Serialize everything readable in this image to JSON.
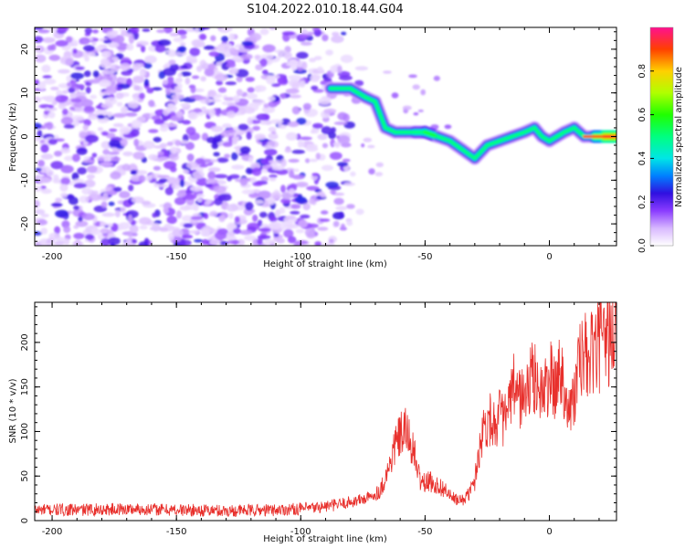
{
  "title": "S104.2022.010.18.44.G04",
  "chart_data": [
    {
      "type": "heatmap",
      "xlabel": "Height of straight line (km)",
      "ylabel": "Frequency (Hz)",
      "xlim": [
        -207,
        27
      ],
      "ylim": [
        -25,
        25
      ],
      "x_ticks": [
        "-200",
        "-150",
        "-100",
        "-50",
        "0"
      ],
      "x_tick_values": [
        -200,
        -150,
        -100,
        -50,
        0
      ],
      "y_ticks": [
        "20",
        "10",
        "0",
        "-10",
        "-20"
      ],
      "y_tick_values": [
        20,
        10,
        0,
        -10,
        -20
      ],
      "colorbar": {
        "label": "Normalized spectral amplitude",
        "range": [
          0.0,
          1.0
        ],
        "ticks": [
          "0.0",
          "0.2",
          "0.4",
          "0.6",
          "0.8"
        ],
        "tick_values": [
          0.0,
          0.2,
          0.4,
          0.6,
          0.8
        ],
        "colormap": "gist_ncar",
        "stops": [
          {
            "v": 0.0,
            "color": "#ffffff"
          },
          {
            "v": 0.08,
            "color": "#d8b8ff"
          },
          {
            "v": 0.16,
            "color": "#8a3cff"
          },
          {
            "v": 0.24,
            "color": "#3010e0"
          },
          {
            "v": 0.32,
            "color": "#0080ff"
          },
          {
            "v": 0.4,
            "color": "#00e6e6"
          },
          {
            "v": 0.5,
            "color": "#00ff80"
          },
          {
            "v": 0.6,
            "color": "#20ff00"
          },
          {
            "v": 0.7,
            "color": "#b0ff00"
          },
          {
            "v": 0.8,
            "color": "#ffd000"
          },
          {
            "v": 0.9,
            "color": "#ff4000"
          },
          {
            "v": 1.0,
            "color": "#ff1090"
          }
        ]
      },
      "noise_region_x": [
        -207,
        -80
      ],
      "signal_track": {
        "x": [
          -88,
          -80,
          -74,
          -70,
          -66,
          -62,
          -58,
          -54,
          -50,
          -45,
          -40,
          -35,
          -30,
          -25,
          -20,
          -15,
          -10,
          -6,
          -3,
          0,
          3,
          6,
          10,
          14,
          18,
          22,
          27
        ],
        "y": [
          11,
          11,
          9,
          8,
          2,
          1,
          1,
          1,
          1,
          0,
          -1,
          -3,
          -5,
          -2,
          -1,
          0,
          1,
          2,
          0,
          -1,
          0,
          1,
          2,
          0,
          0,
          0,
          0
        ],
        "amplitude": [
          0.3,
          0.35,
          0.3,
          0.3,
          0.4,
          0.45,
          0.45,
          0.5,
          0.55,
          0.45,
          0.45,
          0.45,
          0.45,
          0.45,
          0.45,
          0.45,
          0.45,
          0.45,
          0.45,
          0.45,
          0.45,
          0.45,
          0.45,
          0.45,
          0.7,
          0.9,
          0.95
        ]
      }
    },
    {
      "type": "line",
      "xlabel": "Height of straight line (km)",
      "ylabel": "SNR (10 * v/v)",
      "xlim": [
        -207,
        27
      ],
      "ylim": [
        0,
        245
      ],
      "x_ticks": [
        "-200",
        "-150",
        "-100",
        "-50",
        "0"
      ],
      "x_tick_values": [
        -200,
        -150,
        -100,
        -50,
        0
      ],
      "y_ticks": [
        "0",
        "50",
        "100",
        "150",
        "200"
      ],
      "y_tick_values": [
        0,
        50,
        100,
        150,
        200
      ],
      "color": "#e8302c",
      "series": [
        {
          "x": [
            -207,
            -190,
            -170,
            -150,
            -130,
            -110,
            -95,
            -85,
            -78,
            -72,
            -68,
            -65,
            -62,
            -60,
            -58,
            -56,
            -54,
            -52,
            -50,
            -48,
            -46,
            -44,
            -42,
            -40,
            -38,
            -36,
            -34,
            -32,
            -30,
            -28,
            -26,
            -24,
            -22,
            -20,
            -18,
            -16,
            -14,
            -12,
            -10,
            -8,
            -6,
            -4,
            -2,
            0,
            2,
            4,
            6,
            8,
            10,
            12,
            14,
            16,
            18,
            20,
            22,
            24,
            27
          ],
          "y": [
            12,
            12,
            13,
            12,
            11,
            12,
            14,
            18,
            22,
            26,
            34,
            55,
            85,
            95,
            100,
            90,
            70,
            45,
            42,
            44,
            40,
            38,
            35,
            28,
            24,
            22,
            25,
            32,
            45,
            85,
            108,
            115,
            110,
            118,
            112,
            130,
            150,
            140,
            135,
            155,
            160,
            150,
            140,
            165,
            145,
            170,
            155,
            120,
            140,
            175,
            185,
            180,
            190,
            195,
            200,
            205,
            210
          ]
        }
      ]
    }
  ]
}
